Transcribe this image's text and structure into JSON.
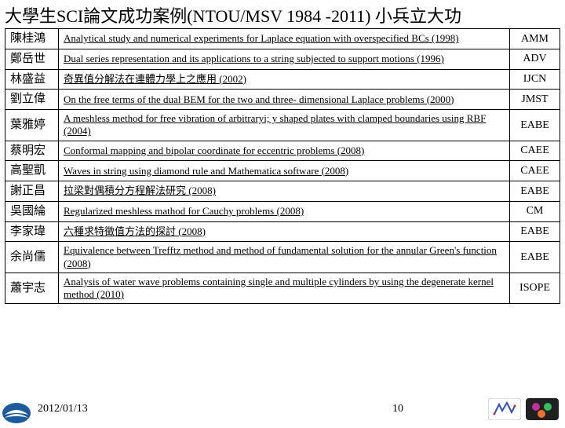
{
  "title": "大學生SCI論文成功案例(NTOU/MSV 1984 -2011) 小兵立大功",
  "rows": [
    {
      "name": "陳桂鴻",
      "desc": "Analytical study and numerical experiments for Laplace equation with overspecified BCs",
      "year": "(1998)",
      "journal": "AMM"
    },
    {
      "name": "鄭岳世",
      "desc": "Dual series representation and its applications to a string subjected to support motions",
      "year": "(1996)",
      "journal": "ADV"
    },
    {
      "name": "林盛益",
      "desc": "奇異值分解法在連體力學上之應用",
      "year": "(2002)",
      "journal": "IJCN"
    },
    {
      "name": "劉立偉",
      "desc": "On the free terms of the dual BEM for the two and three- dimensional Laplace problems",
      "year": "(2000)",
      "journal": "JMST"
    },
    {
      "name": "葉雅婷",
      "desc": "A meshless method for free vibration of arbitraryi; y shaped plates with clamped boundaries using RBF",
      "year": "(2004)",
      "journal": "EABE"
    },
    {
      "name": "蔡明宏",
      "desc": "Conformal mapping and bipolar coordinate for eccentric problems",
      "year": "(2008)",
      "journal": "CAEE"
    },
    {
      "name": "高聖凱",
      "desc": "Waves in string using diamond rule and Mathematica software",
      "year": "(2008)",
      "journal": "CAEE"
    },
    {
      "name": "謝正昌",
      "desc": "拉梁對偶積分方程解法研究",
      "year": "(2008)",
      "journal": "EABE"
    },
    {
      "name": "吳國綸",
      "desc": "Regularized meshless mathod for Cauchy problems",
      "year": "(2008)",
      "journal": "CM"
    },
    {
      "name": "李家瑋",
      "desc": "六種求特徵值方法的探討",
      "year": "(2008)",
      "journal": "EABE"
    },
    {
      "name": "余尚儒",
      "desc": "Equivalence between Trefftz method and method of fundamental solution for the annular Green's function",
      "year": "(2008)",
      "journal": "EABE"
    },
    {
      "name": "蕭宇志",
      "desc": "Analysis of water wave problems containing single and multiple cylinders by using the degenerate kernel method",
      "year": "(2010)",
      "journal": "ISOPE"
    }
  ],
  "footer": {
    "date": "2012/01/13",
    "page": "10"
  },
  "colors": {
    "border": "#000000",
    "text": "#000000",
    "logo_left_bg": "#1a5aa0",
    "logo_left_swoosh": "#ffffff",
    "logo_r1": "#3050c0",
    "logo_r2a": "#c030a0",
    "logo_r2b": "#30c060",
    "logo_r2c": "#f07030"
  }
}
